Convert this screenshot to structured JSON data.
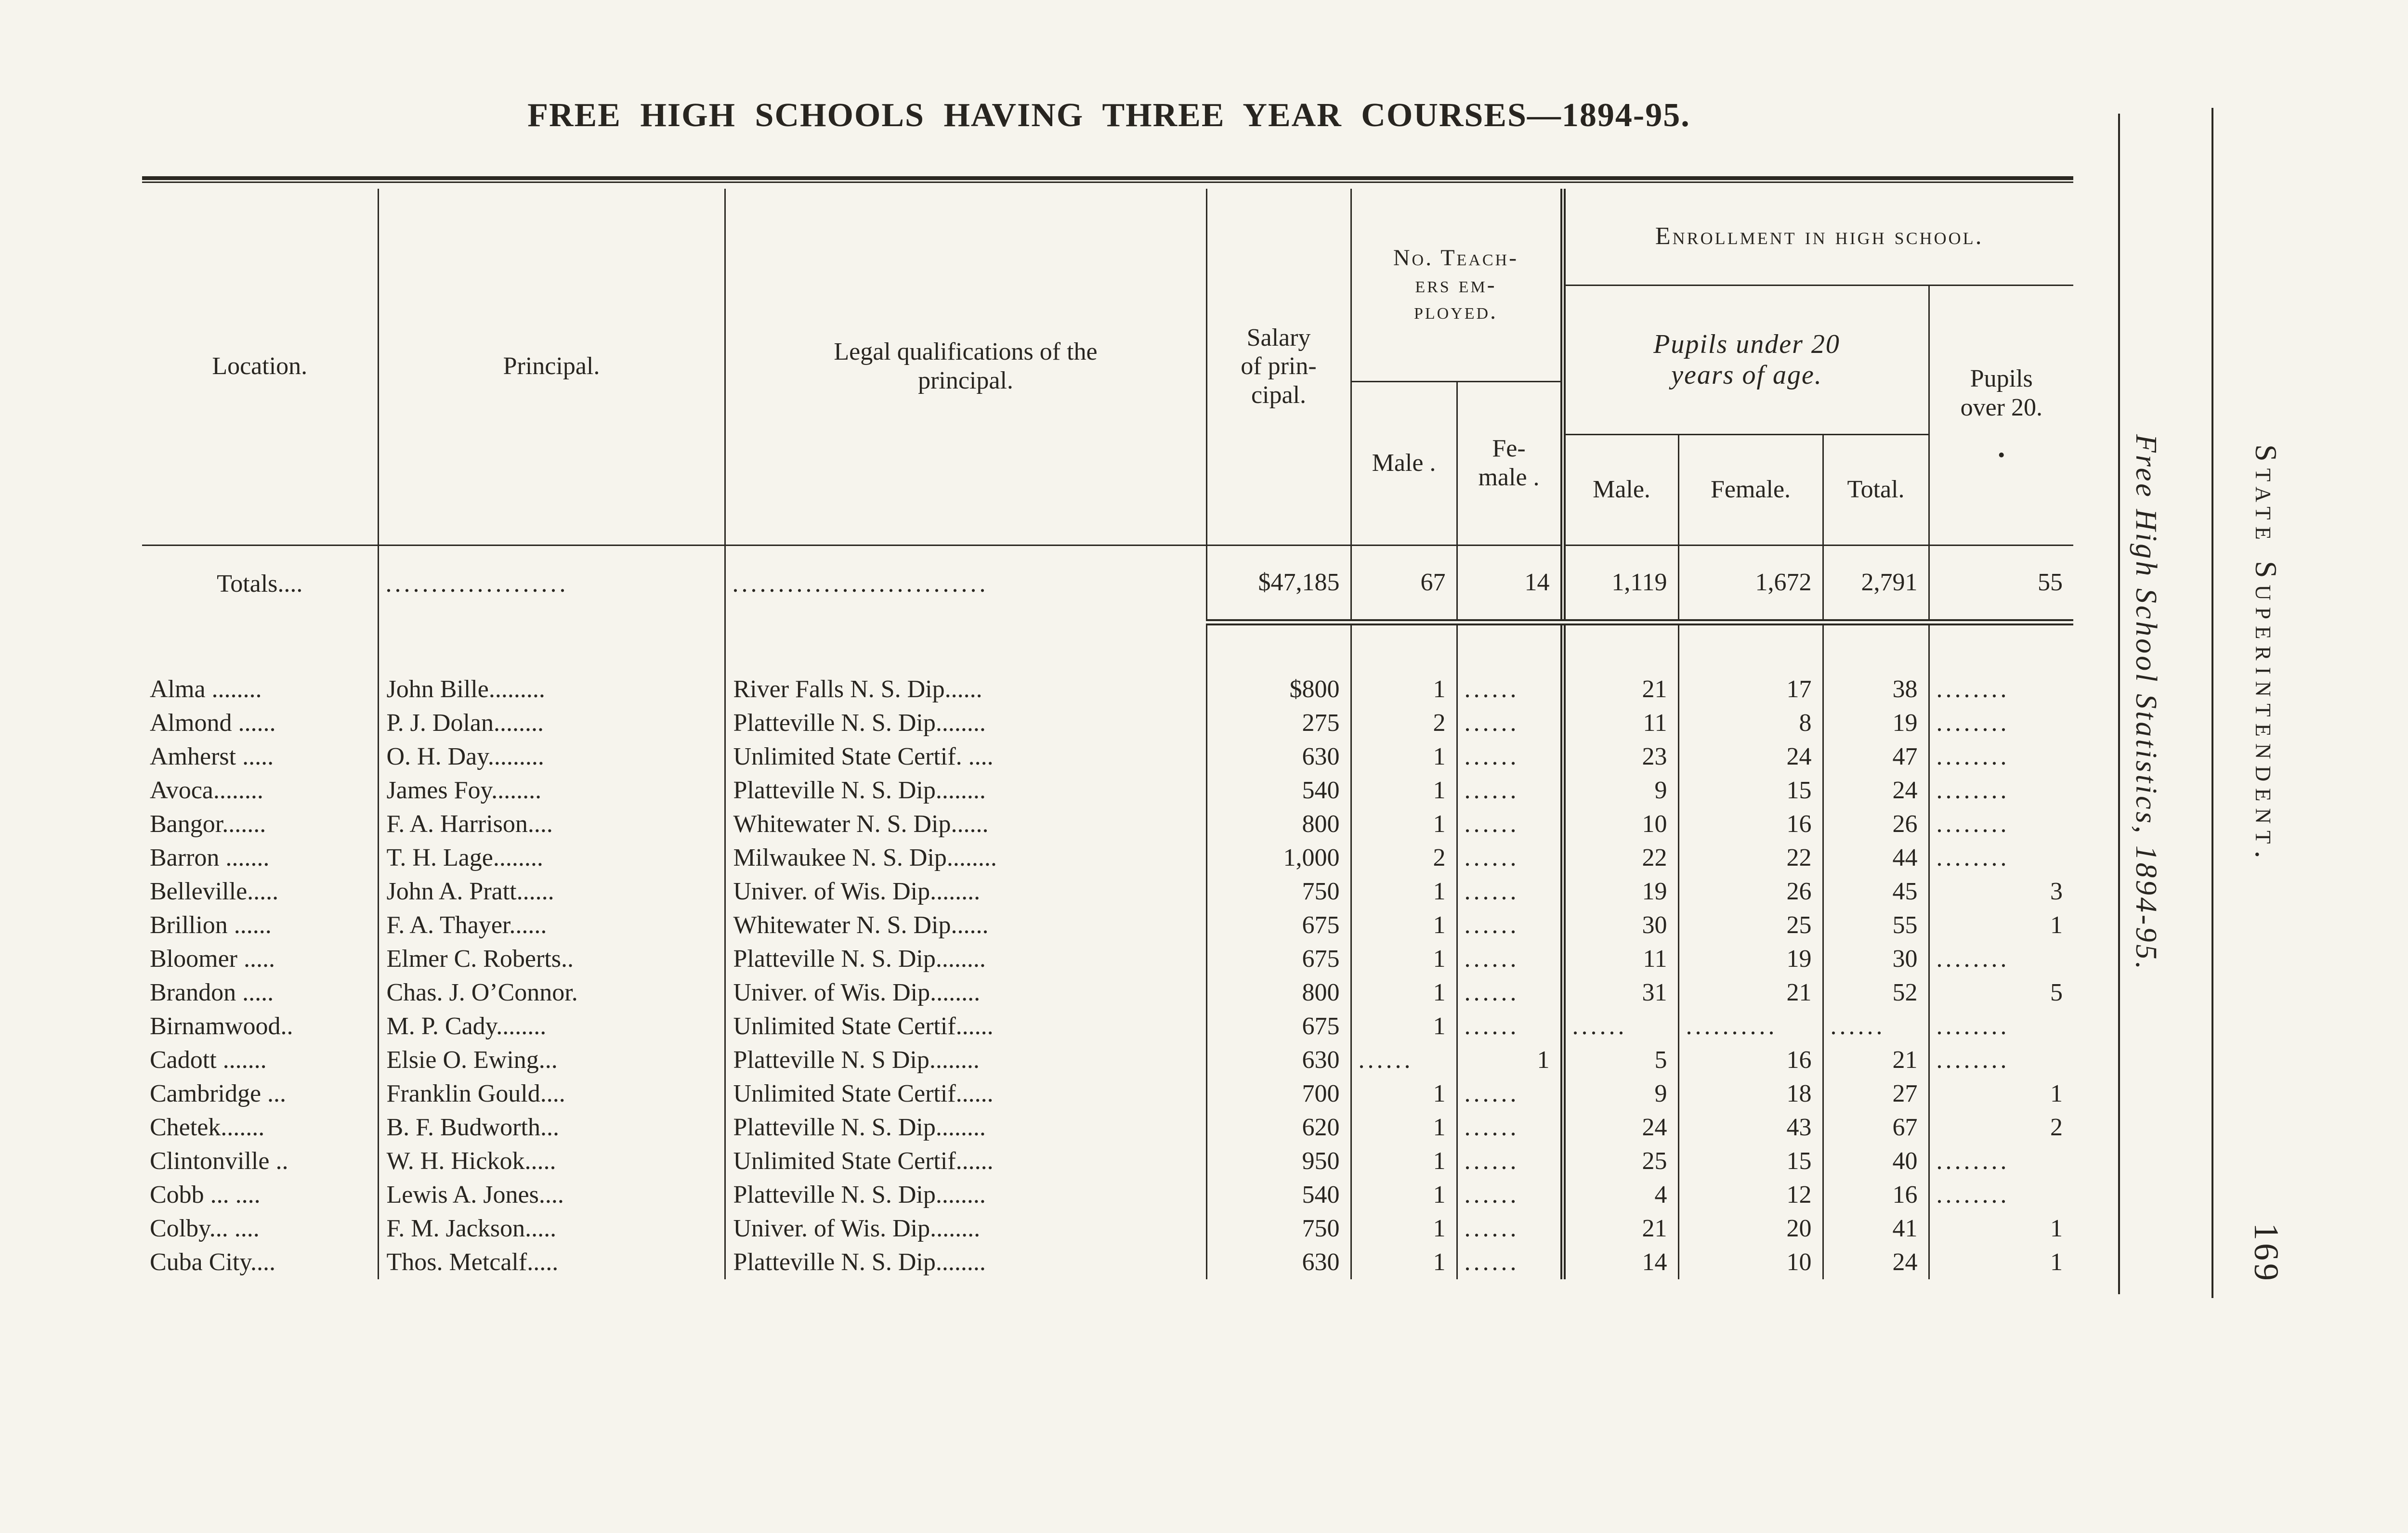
{
  "title": "FREE HIGH SCHOOLS HAVING THREE YEAR COURSES—1894-95.",
  "margin": {
    "running_title": "Free High School Statistics, 1894-95.",
    "superintendent": "State Superintendent.",
    "page_number": "169"
  },
  "table": {
    "headers": {
      "location": "Location.",
      "principal": "Principal.",
      "qualifications": "Legal qualifications of the\nprincipal.",
      "salary": "Salary\nof prin-\ncipal.",
      "teachers_group": "No. Teach-\ners em-\nployed.",
      "teacher_male": "Male .",
      "teacher_female": "Fe-\nmale .",
      "enrollment_group": "Enrollment in high school.",
      "pupils_under_20": "Pupils under 20\nyears of age.",
      "pupil_male": "Male.",
      "pupil_female": "Female.",
      "pupil_total": "Total.",
      "pupils_over_20": "Pupils\nover 20.",
      "over20_mark": "•"
    },
    "totals": {
      "label": "Totals....",
      "principal_dots": "....................",
      "qualifications_dots": "............................",
      "salary": "$47,185",
      "teachers_male": "67",
      "teachers_female": "14",
      "pupils_male": "1,119",
      "pupils_female": "1,672",
      "pupils_total": "2,791",
      "pupils_over_20": "55"
    },
    "rows": [
      {
        "location": "Alma ........",
        "principal": "John Bille.........",
        "qualifications": "River Falls N. S. Dip......",
        "salary": "$800",
        "teachers_male": "1",
        "teachers_female": "......",
        "pupils_male": "21",
        "pupils_female": "17",
        "pupils_total": "38",
        "pupils_over_20": "........"
      },
      {
        "location": "Almond ......",
        "principal": "P. J. Dolan........",
        "qualifications": "Platteville N. S. Dip........",
        "salary": "275",
        "teachers_male": "2",
        "teachers_female": "......",
        "pupils_male": "11",
        "pupils_female": "8",
        "pupils_total": "19",
        "pupils_over_20": "........"
      },
      {
        "location": "Amherst .....",
        "principal": "O. H. Day.........",
        "qualifications": "Unlimited State Certif. ....",
        "salary": "630",
        "teachers_male": "1",
        "teachers_female": "......",
        "pupils_male": "23",
        "pupils_female": "24",
        "pupils_total": "47",
        "pupils_over_20": "........"
      },
      {
        "location": "Avoca........",
        "principal": "James Foy........",
        "qualifications": "Platteville N. S. Dip........",
        "salary": "540",
        "teachers_male": "1",
        "teachers_female": "......",
        "pupils_male": "9",
        "pupils_female": "15",
        "pupils_total": "24",
        "pupils_over_20": "........"
      },
      {
        "location": "Bangor.......",
        "principal": "F. A. Harrison....",
        "qualifications": "Whitewater N. S. Dip......",
        "salary": "800",
        "teachers_male": "1",
        "teachers_female": "......",
        "pupils_male": "10",
        "pupils_female": "16",
        "pupils_total": "26",
        "pupils_over_20": "........"
      },
      {
        "location": "Barron .......",
        "principal": "T. H. Lage........",
        "qualifications": "Milwaukee N. S. Dip........",
        "salary": "1,000",
        "teachers_male": "2",
        "teachers_female": "......",
        "pupils_male": "22",
        "pupils_female": "22",
        "pupils_total": "44",
        "pupils_over_20": "........"
      },
      {
        "location": "Belleville.....",
        "principal": "John A. Pratt......",
        "qualifications": "Univer. of Wis. Dip........",
        "salary": "750",
        "teachers_male": "1",
        "teachers_female": "......",
        "pupils_male": "19",
        "pupils_female": "26",
        "pupils_total": "45",
        "pupils_over_20": "3"
      },
      {
        "location": "Brillion ......",
        "principal": "F. A. Thayer......",
        "qualifications": "Whitewater N. S. Dip......",
        "salary": "675",
        "teachers_male": "1",
        "teachers_female": "......",
        "pupils_male": "30",
        "pupils_female": "25",
        "pupils_total": "55",
        "pupils_over_20": "1"
      },
      {
        "location": "Bloomer .....",
        "principal": "Elmer C. Roberts..",
        "qualifications": "Platteville N. S. Dip........",
        "salary": "675",
        "teachers_male": "1",
        "teachers_female": "......",
        "pupils_male": "11",
        "pupils_female": "19",
        "pupils_total": "30",
        "pupils_over_20": "........"
      },
      {
        "location": "Brandon .....",
        "principal": "Chas. J. O’Connor.",
        "qualifications": "Univer. of Wis. Dip........",
        "salary": "800",
        "teachers_male": "1",
        "teachers_female": "......",
        "pupils_male": "31",
        "pupils_female": "21",
        "pupils_total": "52",
        "pupils_over_20": "5"
      },
      {
        "location": "Birnamwood..",
        "principal": "M. P. Cady........",
        "qualifications": "Unlimited State Certif......",
        "salary": "675",
        "teachers_male": "1",
        "teachers_female": "......",
        "pupils_male": "......",
        "pupils_female": "..........",
        "pupils_total": "......",
        "pupils_over_20": "........"
      },
      {
        "location": "Cadott .......",
        "principal": "Elsie O. Ewing...",
        "qualifications": "Platteville N. S Dip........",
        "salary": "630",
        "teachers_male": "......",
        "teachers_female": "1",
        "pupils_male": "5",
        "pupils_female": "16",
        "pupils_total": "21",
        "pupils_over_20": "........"
      },
      {
        "location": "Cambridge ...",
        "principal": "Franklin Gould....",
        "qualifications": "Unlimited State Certif......",
        "salary": "700",
        "teachers_male": "1",
        "teachers_female": "......",
        "pupils_male": "9",
        "pupils_female": "18",
        "pupils_total": "27",
        "pupils_over_20": "1"
      },
      {
        "location": "Chetek.......",
        "principal": "B. F. Budworth...",
        "qualifications": "Platteville N. S. Dip........",
        "salary": "620",
        "teachers_male": "1",
        "teachers_female": "......",
        "pupils_male": "24",
        "pupils_female": "43",
        "pupils_total": "67",
        "pupils_over_20": "2"
      },
      {
        "location": "Clintonville ..",
        "principal": "W. H. Hickok.....",
        "qualifications": "Unlimited State Certif......",
        "salary": "950",
        "teachers_male": "1",
        "teachers_female": "......",
        "pupils_male": "25",
        "pupils_female": "15",
        "pupils_total": "40",
        "pupils_over_20": "........"
      },
      {
        "location": "Cobb ... ....",
        "principal": "Lewis A. Jones....",
        "qualifications": "Platteville N. S. Dip........",
        "salary": "540",
        "teachers_male": "1",
        "teachers_female": "......",
        "pupils_male": "4",
        "pupils_female": "12",
        "pupils_total": "16",
        "pupils_over_20": "........"
      },
      {
        "location": "Colby... ....",
        "principal": "F. M. Jackson.....",
        "qualifications": "Univer. of Wis. Dip........",
        "salary": "750",
        "teachers_male": "1",
        "teachers_female": "......",
        "pupils_male": "21",
        "pupils_female": "20",
        "pupils_total": "41",
        "pupils_over_20": "1"
      },
      {
        "location": "Cuba City....",
        "principal": "Thos. Metcalf.....",
        "qualifications": "Platteville N. S. Dip........",
        "salary": "630",
        "teachers_male": "1",
        "teachers_female": "......",
        "pupils_male": "14",
        "pupils_female": "10",
        "pupils_total": "24",
        "pupils_over_20": "1"
      }
    ]
  }
}
